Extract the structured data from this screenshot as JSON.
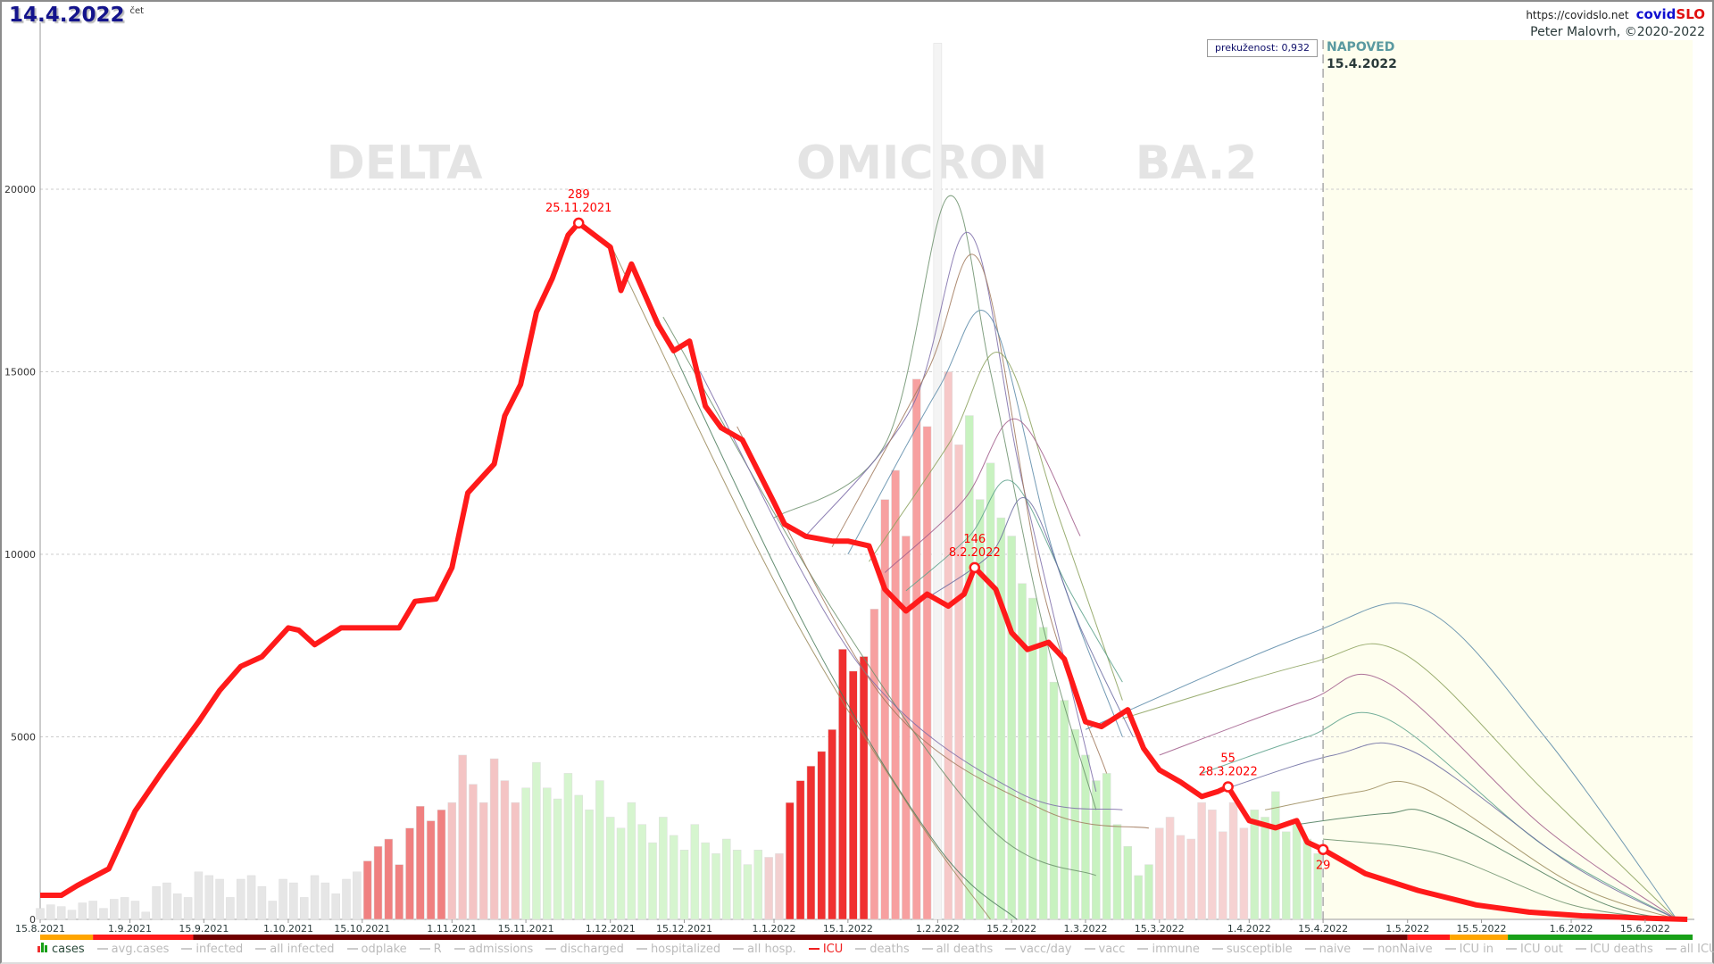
{
  "header": {
    "date": "14.4.2022",
    "day_of_week": "čet",
    "url": "https://covidslo.net",
    "brand_a": "covid",
    "brand_b": "SLO",
    "author": "Peter Malovrh, ©2020-2022",
    "prekuzenost": "prekuženost: 0,932",
    "forecast_label": "NAPOVED",
    "forecast_date": "15.4.2022"
  },
  "chart_data": {
    "type": "line",
    "title": "14.4.2022",
    "x_origin": "15.8.2021",
    "x_unit": "days since 15.8.2021",
    "xlim": [
      0,
      313
    ],
    "ylim": [
      0,
      25000
    ],
    "grid": true,
    "icu_to_axis_factor": 66,
    "phase_labels": [
      {
        "text": "DELTA",
        "day": 69
      },
      {
        "text": "OMICRON",
        "day": 167
      },
      {
        "text": "BA.2",
        "day": 219
      }
    ],
    "y_ticks": [
      {
        "v": 0,
        "label": "0"
      },
      {
        "v": 5000,
        "label": "5000"
      },
      {
        "v": 10000,
        "label": "10000"
      },
      {
        "v": 15000,
        "label": "15000"
      },
      {
        "v": 20000,
        "label": "20000"
      }
    ],
    "x_ticks": [
      {
        "d": 0,
        "label": "15.8.2021"
      },
      {
        "d": 17,
        "label": "1.9.2021"
      },
      {
        "d": 31,
        "label": "15.9.2021"
      },
      {
        "d": 47,
        "label": "1.10.2021"
      },
      {
        "d": 61,
        "label": "15.10.2021"
      },
      {
        "d": 78,
        "label": "1.11.2021"
      },
      {
        "d": 92,
        "label": "15.11.2021"
      },
      {
        "d": 108,
        "label": "1.12.2021"
      },
      {
        "d": 122,
        "label": "15.12.2021"
      },
      {
        "d": 139,
        "label": "1.1.2022"
      },
      {
        "d": 153,
        "label": "15.1.2022"
      },
      {
        "d": 170,
        "label": "1.2.2022"
      },
      {
        "d": 184,
        "label": "15.2.2022"
      },
      {
        "d": 198,
        "label": "1.3.2022"
      },
      {
        "d": 212,
        "label": "15.3.2022"
      },
      {
        "d": 229,
        "label": "1.4.2022"
      },
      {
        "d": 243,
        "label": "15.4.2022"
      },
      {
        "d": 259,
        "label": "1.5.2022"
      },
      {
        "d": 273,
        "label": "15.5.2022"
      },
      {
        "d": 290,
        "label": "1.6.2022"
      },
      {
        "d": 304,
        "label": "15.6.2022"
      }
    ],
    "forecast_start_day": 243,
    "icu_series": {
      "name": "ICU",
      "color": "#ff1a1a",
      "points": [
        [
          0,
          10
        ],
        [
          4,
          10
        ],
        [
          7,
          14
        ],
        [
          13,
          21
        ],
        [
          18,
          45
        ],
        [
          23,
          61
        ],
        [
          30,
          82
        ],
        [
          34,
          95
        ],
        [
          38,
          105
        ],
        [
          42,
          109
        ],
        [
          47,
          121
        ],
        [
          49,
          120
        ],
        [
          52,
          114
        ],
        [
          57,
          121
        ],
        [
          61,
          121
        ],
        [
          68,
          121
        ],
        [
          71,
          132
        ],
        [
          75,
          133
        ],
        [
          78,
          146
        ],
        [
          81,
          177
        ],
        [
          86,
          189
        ],
        [
          88,
          209
        ],
        [
          91,
          222
        ],
        [
          94,
          252
        ],
        [
          97,
          266
        ],
        [
          100,
          284
        ],
        [
          102,
          289
        ],
        [
          105,
          284
        ],
        [
          108,
          279
        ],
        [
          110,
          261
        ],
        [
          112,
          272
        ],
        [
          114,
          262
        ],
        [
          117,
          247
        ],
        [
          120,
          236
        ],
        [
          123,
          240
        ],
        [
          126,
          213
        ],
        [
          129,
          204
        ],
        [
          133,
          199
        ],
        [
          136,
          186
        ],
        [
          139,
          173
        ],
        [
          141,
          164
        ],
        [
          145,
          159
        ],
        [
          150,
          157
        ],
        [
          153,
          157
        ],
        [
          157,
          155
        ],
        [
          160,
          137
        ],
        [
          164,
          128
        ],
        [
          168,
          135
        ],
        [
          172,
          130
        ],
        [
          175,
          135
        ],
        [
          177,
          146
        ],
        [
          181,
          137
        ],
        [
          184,
          119
        ],
        [
          187,
          112
        ],
        [
          191,
          115
        ],
        [
          194,
          108
        ],
        [
          198,
          82
        ],
        [
          201,
          80
        ],
        [
          206,
          87
        ],
        [
          209,
          71
        ],
        [
          212,
          62
        ],
        [
          216,
          57
        ],
        [
          220,
          51
        ],
        [
          223,
          53
        ],
        [
          225,
          55
        ],
        [
          229,
          41
        ],
        [
          234,
          38
        ],
        [
          238,
          41
        ],
        [
          240,
          32
        ],
        [
          243,
          29
        ]
      ]
    },
    "icu_forecast": [
      [
        243,
        29
      ],
      [
        251,
        19
      ],
      [
        261,
        12
      ],
      [
        272,
        6
      ],
      [
        282,
        3
      ],
      [
        292,
        1.5
      ],
      [
        304,
        0.5
      ],
      [
        312,
        0
      ]
    ],
    "annotations": [
      {
        "day": 102,
        "value": 289,
        "label": "289",
        "date": "25.11.2021"
      },
      {
        "day": 177,
        "value": 146,
        "label": "146",
        "date": "8.2.2022"
      },
      {
        "day": 225,
        "value": 55,
        "label": "55",
        "date": "28.3.2022"
      },
      {
        "day": 243,
        "value": 29,
        "label": "29",
        "date": ""
      }
    ],
    "cases_bars": {
      "name": "cases",
      "step_days": 2,
      "groups": [
        {
          "color": "#e6e6e6",
          "values": [
            300,
            400,
            350,
            250,
            450,
            500,
            300,
            550,
            600,
            500,
            200,
            900,
            1000,
            700,
            600,
            1300,
            1200,
            1100,
            600,
            1100,
            1200,
            900,
            500,
            1100,
            1000,
            600,
            1200,
            1000,
            700,
            1100,
            1300
          ]
        },
        {
          "color": "#f08080",
          "values": [
            1600,
            2000,
            2200,
            1500,
            2500,
            3100,
            2700,
            3000
          ]
        },
        {
          "color": "#f4c4c4",
          "values": [
            3200,
            4500,
            3700,
            3200,
            4400,
            3800,
            3200
          ]
        },
        {
          "color": "#d6f5cf",
          "values": [
            3600,
            4300,
            3600,
            3300,
            4000,
            3400,
            3000,
            3800,
            2800,
            2500,
            3200,
            2600,
            2100,
            2800,
            2300,
            1900,
            2600,
            2100,
            1800,
            2200,
            1900,
            1500,
            1900
          ]
        },
        {
          "color": "#f2d0d0",
          "values": [
            1700,
            1800
          ]
        },
        {
          "color": "#f03030",
          "values": [
            3200,
            3800,
            4200,
            4600,
            5200,
            7400,
            6800,
            7200
          ]
        },
        {
          "color": "#f7a0a0",
          "values": [
            8500,
            11500,
            12300,
            10500,
            14800,
            13500
          ]
        },
        {
          "color": "#f4f4f4",
          "values": [
            24000
          ]
        },
        {
          "color": "#f6c8c8",
          "values": [
            15000,
            13000
          ]
        },
        {
          "color": "#c8f2c0",
          "values": [
            13800,
            11500,
            12500,
            11000,
            10500,
            9200,
            8800,
            8000,
            6500,
            6000,
            5200,
            4500,
            3800,
            4000,
            2600,
            2000,
            1200,
            1500
          ]
        },
        {
          "color": "#f6d2d2",
          "values": [
            2500,
            2800,
            2300,
            2200,
            3200,
            3000,
            2400,
            3200,
            2500
          ]
        },
        {
          "color": "#cdf2c6",
          "values": [
            3000,
            2800,
            3500,
            2400,
            2600,
            2200,
            1800
          ]
        }
      ]
    },
    "forecast_palette": [
      "#6b8f6b",
      "#7b6ba8",
      "#a0785a",
      "#5a8aa8",
      "#8aa05a",
      "#a05a8a",
      "#5aa08a",
      "#6a6aa0",
      "#9a8a5a",
      "#4a7a5a"
    ],
    "forecast_curves": [
      [
        [
          139,
          11000
        ],
        [
          160,
          13000
        ],
        [
          172,
          19800
        ],
        [
          180,
          15000
        ],
        [
          190,
          8000
        ],
        [
          200,
          3000
        ]
      ],
      [
        [
          145,
          10500
        ],
        [
          165,
          14000
        ],
        [
          176,
          18800
        ],
        [
          186,
          12000
        ],
        [
          200,
          3500
        ]
      ],
      [
        [
          150,
          10200
        ],
        [
          168,
          15000
        ],
        [
          178,
          18000
        ],
        [
          190,
          9000
        ],
        [
          202,
          4000
        ]
      ],
      [
        [
          153,
          10000
        ],
        [
          170,
          14500
        ],
        [
          180,
          16500
        ],
        [
          192,
          10000
        ],
        [
          205,
          5000
        ]
      ],
      [
        [
          157,
          9800
        ],
        [
          172,
          13000
        ],
        [
          182,
          15500
        ],
        [
          193,
          11000
        ],
        [
          205,
          6000
        ]
      ],
      [
        [
          160,
          9500
        ],
        [
          175,
          11500
        ],
        [
          185,
          13700
        ],
        [
          197,
          10500
        ]
      ],
      [
        [
          164,
          9000
        ],
        [
          176,
          10500
        ],
        [
          184,
          12000
        ],
        [
          195,
          9000
        ],
        [
          205,
          6500
        ]
      ],
      [
        [
          168,
          8800
        ],
        [
          180,
          10000
        ],
        [
          187,
          11500
        ],
        [
          197,
          8000
        ],
        [
          207,
          5000
        ]
      ],
      [
        [
          108,
          18500
        ],
        [
          140,
          9000
        ],
        [
          165,
          3000
        ],
        [
          180,
          0
        ]
      ],
      [
        [
          112,
          18000
        ],
        [
          145,
          8000
        ],
        [
          170,
          2000
        ],
        [
          185,
          0
        ]
      ],
      [
        [
          118,
          16500
        ],
        [
          150,
          8500
        ],
        [
          180,
          2500
        ],
        [
          200,
          1200
        ]
      ],
      [
        [
          125,
          15000
        ],
        [
          155,
          7000
        ],
        [
          185,
          3500
        ],
        [
          205,
          3000
        ]
      ],
      [
        [
          132,
          13500
        ],
        [
          160,
          6000
        ],
        [
          190,
          3000
        ],
        [
          210,
          2500
        ]
      ],
      [
        [
          198,
          5200
        ],
        [
          240,
          7800
        ],
        [
          262,
          8500
        ],
        [
          285,
          5000
        ],
        [
          310,
          0
        ]
      ],
      [
        [
          205,
          5500
        ],
        [
          240,
          7000
        ],
        [
          258,
          7300
        ],
        [
          285,
          3500
        ],
        [
          310,
          0
        ]
      ],
      [
        [
          212,
          4500
        ],
        [
          240,
          6000
        ],
        [
          255,
          6500
        ],
        [
          285,
          2500
        ],
        [
          310,
          0
        ]
      ],
      [
        [
          220,
          4000
        ],
        [
          240,
          5000
        ],
        [
          255,
          5500
        ],
        [
          285,
          2000
        ],
        [
          310,
          0
        ]
      ],
      [
        [
          225,
          3600
        ],
        [
          245,
          4500
        ],
        [
          260,
          4600
        ],
        [
          290,
          1500
        ],
        [
          310,
          0
        ]
      ],
      [
        [
          232,
          3000
        ],
        [
          250,
          3500
        ],
        [
          262,
          3600
        ],
        [
          290,
          1000
        ],
        [
          310,
          0
        ]
      ],
      [
        [
          238,
          2600
        ],
        [
          255,
          2900
        ],
        [
          265,
          2800
        ],
        [
          295,
          500
        ],
        [
          310,
          0
        ]
      ],
      [
        [
          243,
          2200
        ],
        [
          265,
          1800
        ],
        [
          290,
          400
        ],
        [
          310,
          0
        ]
      ]
    ],
    "status_strip": [
      {
        "from": 0,
        "to": 10,
        "color": "#ffa500"
      },
      {
        "from": 10,
        "to": 29,
        "color": "#ff1a1a"
      },
      {
        "from": 29,
        "to": 259,
        "color": "#700000"
      },
      {
        "from": 259,
        "to": 267,
        "color": "#ff1a1a"
      },
      {
        "from": 267,
        "to": 278,
        "color": "#ffa500"
      },
      {
        "from": 278,
        "to": 313,
        "color": "#18a018"
      }
    ]
  },
  "legend": [
    {
      "label": "cases",
      "kind": "cases"
    },
    {
      "label": "avg.cases"
    },
    {
      "label": "infected"
    },
    {
      "label": "all infected"
    },
    {
      "label": "odplake"
    },
    {
      "label": "R"
    },
    {
      "label": "admissions"
    },
    {
      "label": "discharged"
    },
    {
      "label": "hospitalized"
    },
    {
      "label": "all hosp."
    },
    {
      "label": "ICU",
      "kind": "active"
    },
    {
      "label": "deaths"
    },
    {
      "label": "all deaths"
    },
    {
      "label": "vacc/day"
    },
    {
      "label": "vacc"
    },
    {
      "label": "immune"
    },
    {
      "label": "susceptible"
    },
    {
      "label": "naive"
    },
    {
      "label": "nonNaive"
    },
    {
      "label": "ICU in"
    },
    {
      "label": "ICU out"
    },
    {
      "label": "ICU deaths"
    },
    {
      "label": "all ICU"
    }
  ]
}
